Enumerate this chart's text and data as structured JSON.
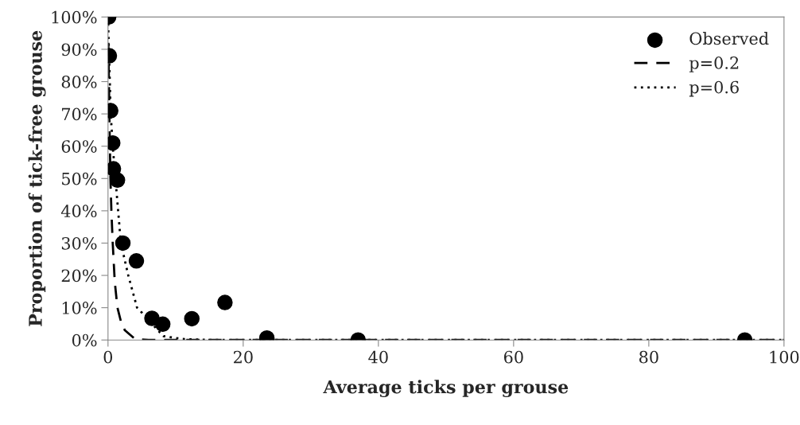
{
  "chart_data": {
    "type": "scatter",
    "xlabel": "Average ticks per grouse",
    "ylabel": "Proportion of tick-free grouse",
    "xlim": [
      0,
      100
    ],
    "xticks": [
      {
        "value": 0,
        "label": "0"
      },
      20,
      40,
      60,
      80,
      100
    ],
    "ylim": [
      0,
      100
    ],
    "yticks": [
      {
        "value": 0,
        "label": "0%"
      },
      {
        "value": 10,
        "label": "10%"
      },
      {
        "value": 20,
        "label": "20%"
      },
      {
        "value": 30,
        "label": "30%"
      },
      {
        "value": 40,
        "label": "40%"
      },
      {
        "value": 50,
        "label": "50%"
      },
      {
        "value": 60,
        "label": "60%"
      },
      {
        "value": 70,
        "label": "70%"
      },
      {
        "value": 80,
        "label": "80%"
      },
      {
        "value": 90,
        "label": "90%"
      },
      {
        "value": 100,
        "label": "100%"
      }
    ],
    "grid": false,
    "legend": "top right",
    "series": [
      {
        "name": "Observed",
        "marker": "circle",
        "color": "#000000",
        "x": [
          0.1,
          0.2,
          0.4,
          0.7,
          0.8,
          1.4,
          2.2,
          4.2,
          6.5,
          8.1,
          12.4,
          17.3,
          23.5,
          37,
          94.2
        ],
        "values": [
          100,
          88,
          71,
          61,
          53,
          49.5,
          30,
          24.5,
          6.7,
          4.9,
          6.6,
          11.6,
          0.6,
          0,
          0
        ]
      },
      {
        "name": "p=0.2",
        "type": "line",
        "line_style": "dashed",
        "color": "#000000",
        "x": [
          0.05,
          0.1,
          0.2,
          0.36,
          0.5,
          0.7,
          1.0,
          1.4,
          2,
          2.5,
          4,
          6,
          100
        ],
        "values": [
          92,
          85,
          70,
          50,
          40,
          30,
          18,
          10,
          5,
          3,
          0.3,
          0,
          0
        ]
      },
      {
        "name": "p=0.6",
        "type": "line",
        "line_style": "dotted",
        "color": "#000000",
        "x": [
          0,
          0.1,
          0.2,
          0.4,
          0.7,
          1.1,
          1.9,
          3,
          4.3,
          5,
          6.5,
          8.2,
          11,
          15,
          100
        ],
        "values": [
          100,
          92,
          85,
          70,
          60,
          50,
          30,
          20,
          10,
          8.5,
          5,
          1.2,
          0.3,
          0,
          0
        ]
      }
    ]
  }
}
